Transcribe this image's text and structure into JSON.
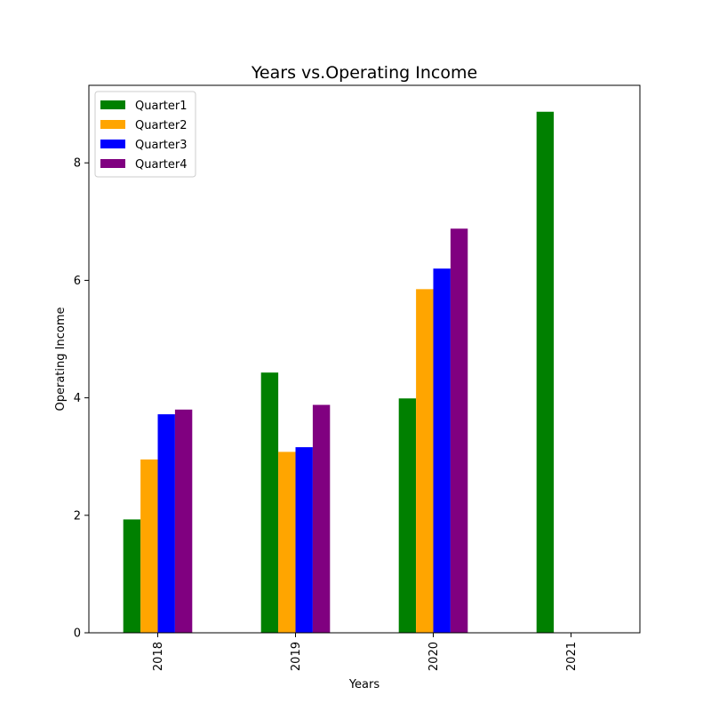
{
  "chart_data": {
    "type": "bar",
    "title": "Years vs.Operating Income",
    "xlabel": "Years",
    "ylabel": "Operating Income",
    "categories": [
      "2018",
      "2019",
      "2020",
      "2021"
    ],
    "series": [
      {
        "name": "Quarter1",
        "color": "#008000",
        "values": [
          1.93,
          4.43,
          3.99,
          8.87
        ]
      },
      {
        "name": "Quarter2",
        "color": "#ffa500",
        "values": [
          2.95,
          3.08,
          5.85,
          null
        ]
      },
      {
        "name": "Quarter3",
        "color": "#0000ff",
        "values": [
          3.72,
          3.16,
          6.2,
          null
        ]
      },
      {
        "name": "Quarter4",
        "color": "#800080",
        "values": [
          3.8,
          3.88,
          6.88,
          null
        ]
      }
    ],
    "ylim": [
      0,
      9.32
    ],
    "yticks": [
      0,
      2,
      4,
      6,
      8
    ],
    "xtick_rotation": "vertical",
    "grid": false,
    "legend_position": "top-left"
  }
}
